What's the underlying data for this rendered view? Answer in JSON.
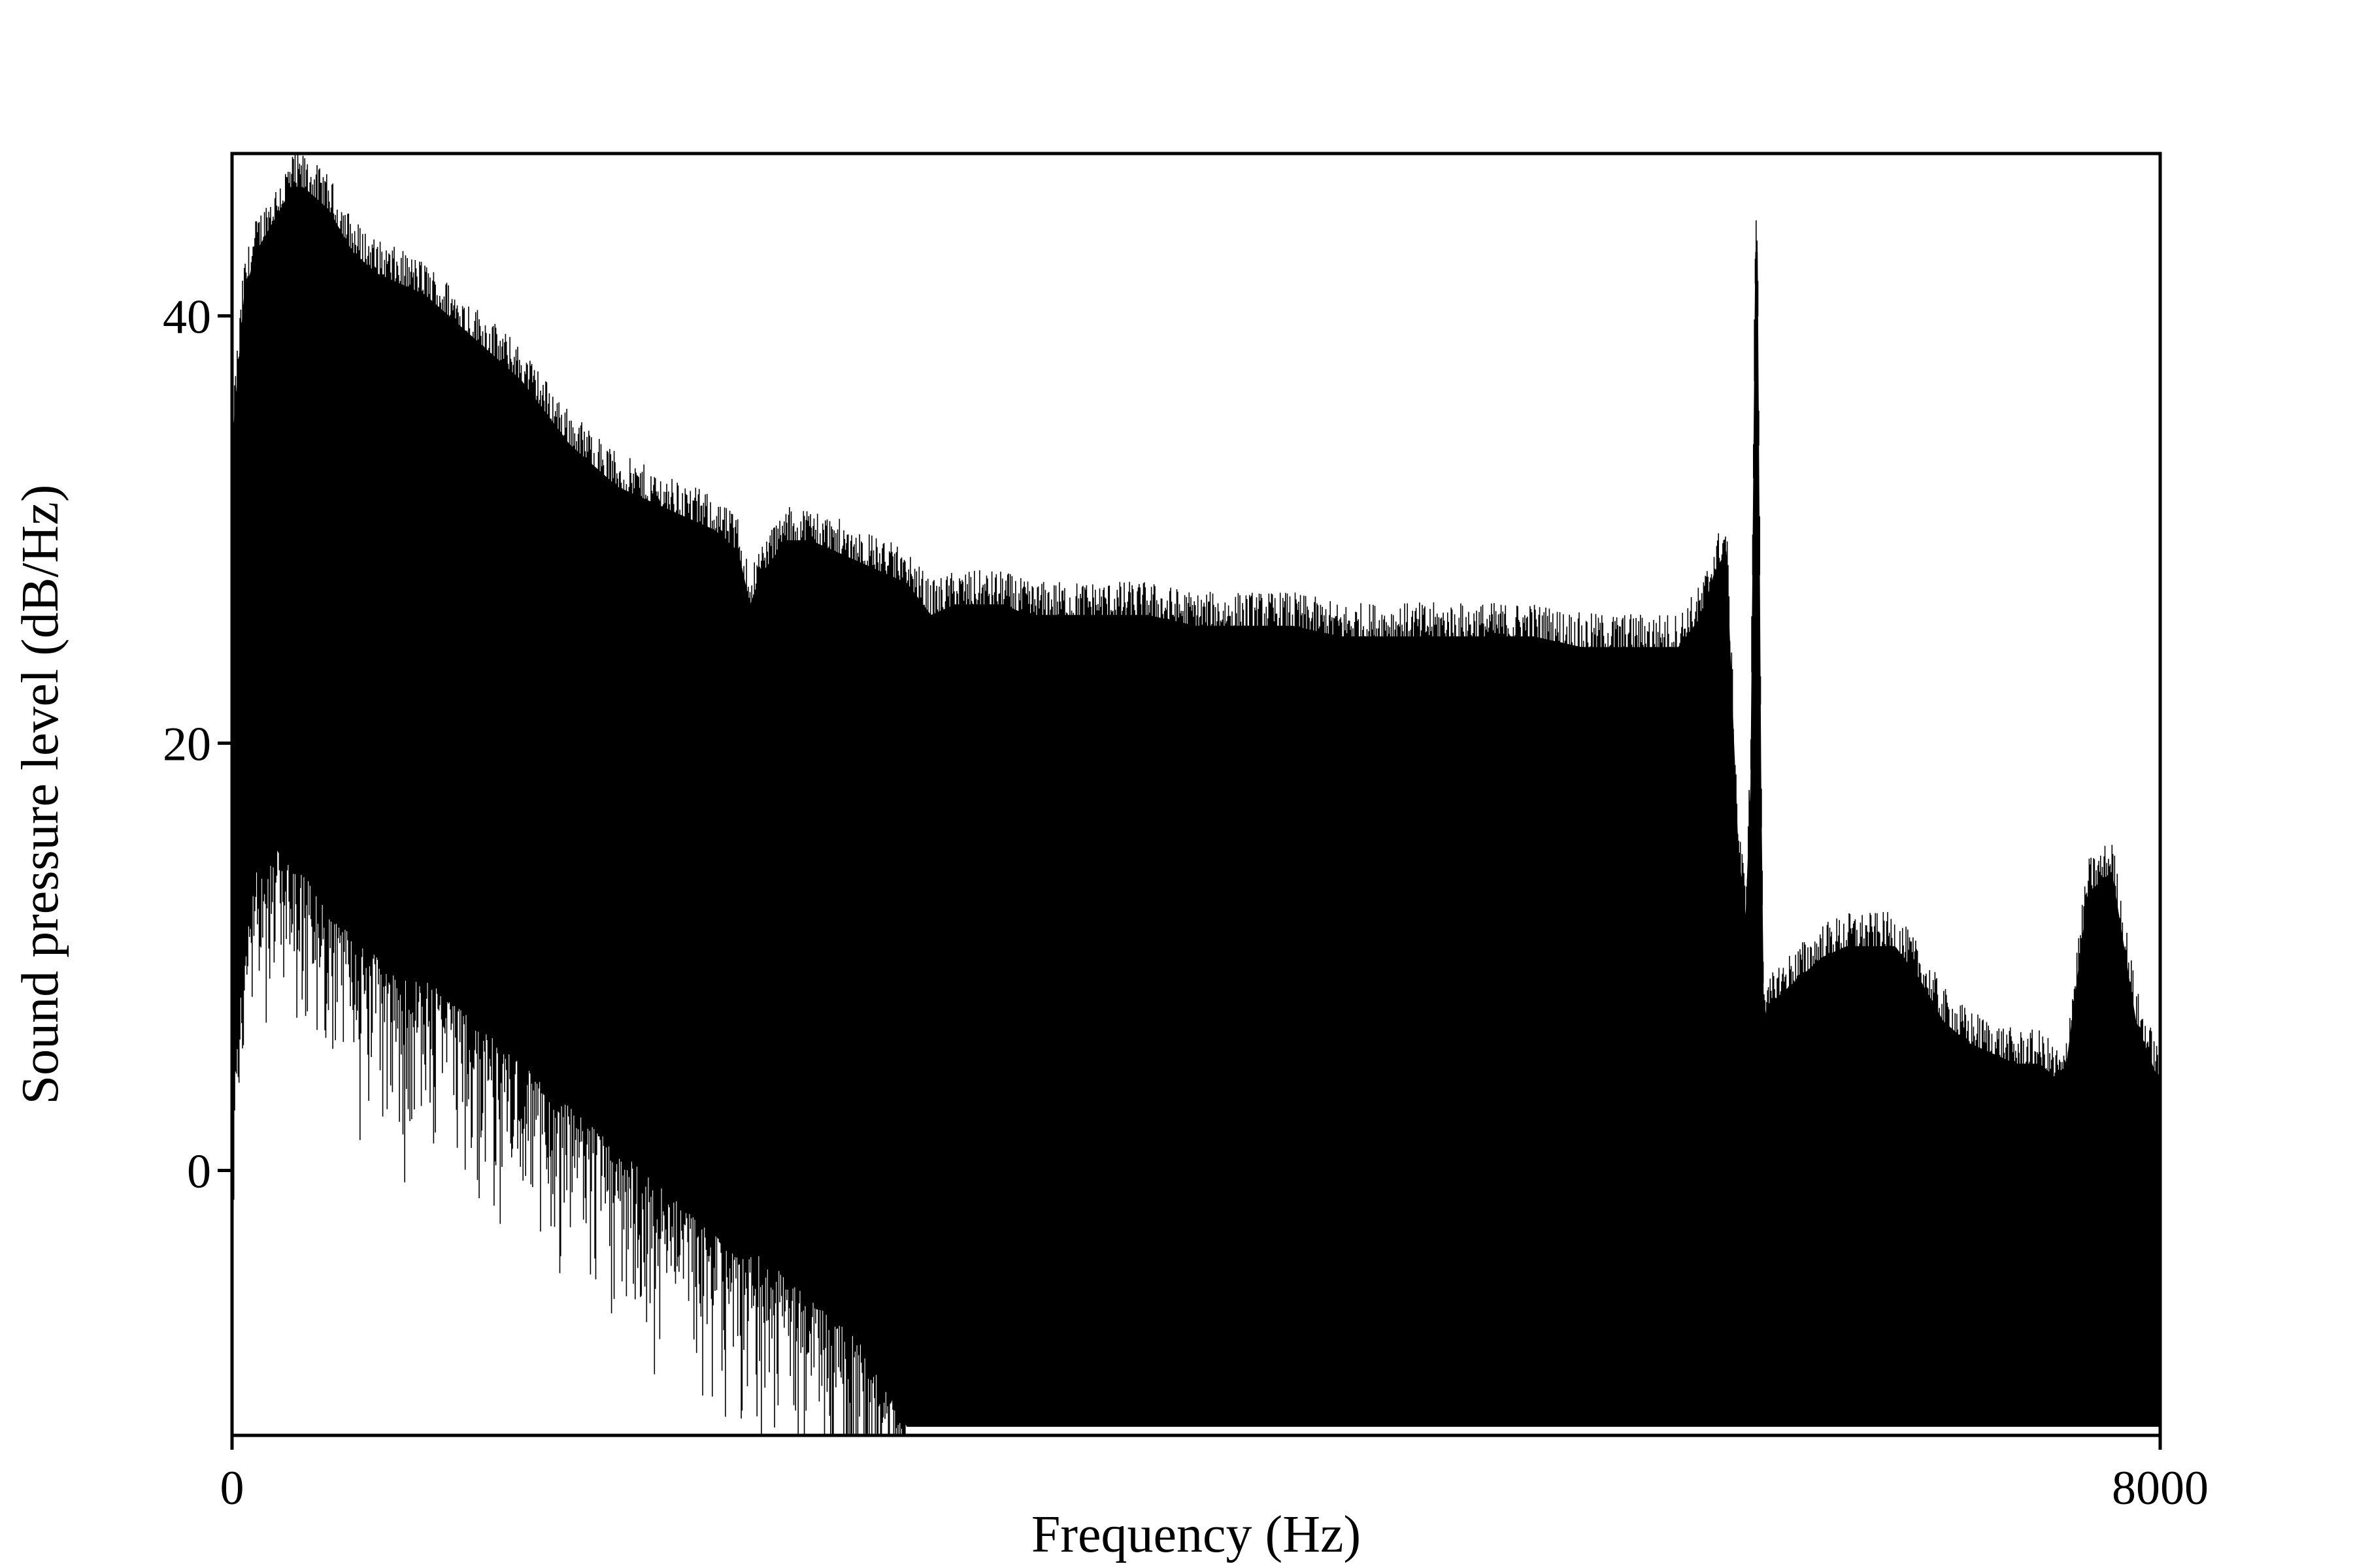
{
  "colors": {
    "background": "#ffffff",
    "trace": "#000000",
    "axes": "#000000"
  },
  "chart_data": {
    "type": "line",
    "title": "",
    "xlabel": "Frequency (Hz)",
    "ylabel": "Sound pressure level (dB/Hz)",
    "xlim": [
      0,
      8000
    ],
    "ylim": [
      -12.4,
      47.6
    ],
    "x_ticks": [
      0,
      8000
    ],
    "x_tick_labels": [
      "0",
      "8000"
    ],
    "y_ticks": [
      0,
      20,
      40
    ],
    "y_tick_labels": [
      "0",
      "20",
      "40"
    ],
    "grid": false,
    "legend": "none",
    "series": [
      {
        "style": "dense spectrum envelope (band between lower and upper level)",
        "x": [
          0,
          50,
          100,
          150,
          200,
          250,
          300,
          350,
          400,
          500,
          600,
          700,
          800,
          900,
          1000,
          1100,
          1200,
          1300,
          1400,
          1500,
          1600,
          1700,
          1800,
          1900,
          2000,
          2100,
          2150,
          2200,
          2300,
          2400,
          2500,
          2600,
          2700,
          2800,
          2900,
          3000,
          3100,
          3200,
          3300,
          3400,
          3600,
          3800,
          4000,
          4200,
          4400,
          4600,
          4800,
          5000,
          5200,
          5400,
          5600,
          5800,
          6000,
          6100,
          6150,
          6200,
          6250,
          6280,
          6300,
          6320,
          6330,
          6345,
          6355,
          6370,
          6400,
          6500,
          6600,
          6700,
          6800,
          6900,
          7000,
          7100,
          7200,
          7300,
          7400,
          7500,
          7600,
          7700,
          7800,
          7900,
          8000
        ],
        "upper": [
          34,
          41,
          43,
          44,
          45,
          46,
          46,
          45.5,
          45,
          43,
          42,
          41.5,
          41,
          40,
          39,
          38,
          37,
          35.5,
          34,
          33,
          32,
          31.5,
          31,
          30.5,
          30,
          29,
          26.5,
          28,
          29.5,
          29.5,
          29,
          28.5,
          28,
          27.5,
          26,
          26.5,
          26.5,
          26.5,
          26,
          26,
          26,
          26,
          25.5,
          25.5,
          25.5,
          25,
          25,
          25,
          25,
          25,
          24.5,
          24.5,
          24.5,
          26,
          28,
          29,
          15,
          12,
          18,
          43,
          43,
          18,
          8,
          7,
          8,
          9,
          10,
          10.5,
          10.5,
          10.5,
          9,
          7,
          6,
          5.5,
          5,
          5,
          4,
          13,
          14,
          7,
          4
        ],
        "lower": [
          4,
          10,
          14,
          15,
          15,
          14,
          14,
          13,
          12,
          11,
          10,
          9,
          9,
          8,
          7,
          6,
          5,
          4,
          3,
          2,
          1,
          0,
          -1,
          -2,
          -3,
          -4,
          -4,
          -4,
          -5,
          -6,
          -7,
          -8,
          -10,
          -12,
          -12,
          -12,
          -12,
          -12,
          -12,
          -12,
          -12,
          -12,
          -12,
          -12,
          -12,
          -12,
          -12,
          -12,
          -12,
          -12,
          -12,
          -12,
          -12,
          -12,
          -12,
          -12,
          -12,
          -12,
          -12,
          -12,
          -12,
          -12,
          -12,
          -12,
          -12,
          -12,
          -12,
          -12,
          -12,
          -12,
          -12,
          -12,
          -12,
          -12,
          -12,
          -12,
          -12,
          -12,
          -12,
          -12,
          -12
        ]
      }
    ]
  }
}
